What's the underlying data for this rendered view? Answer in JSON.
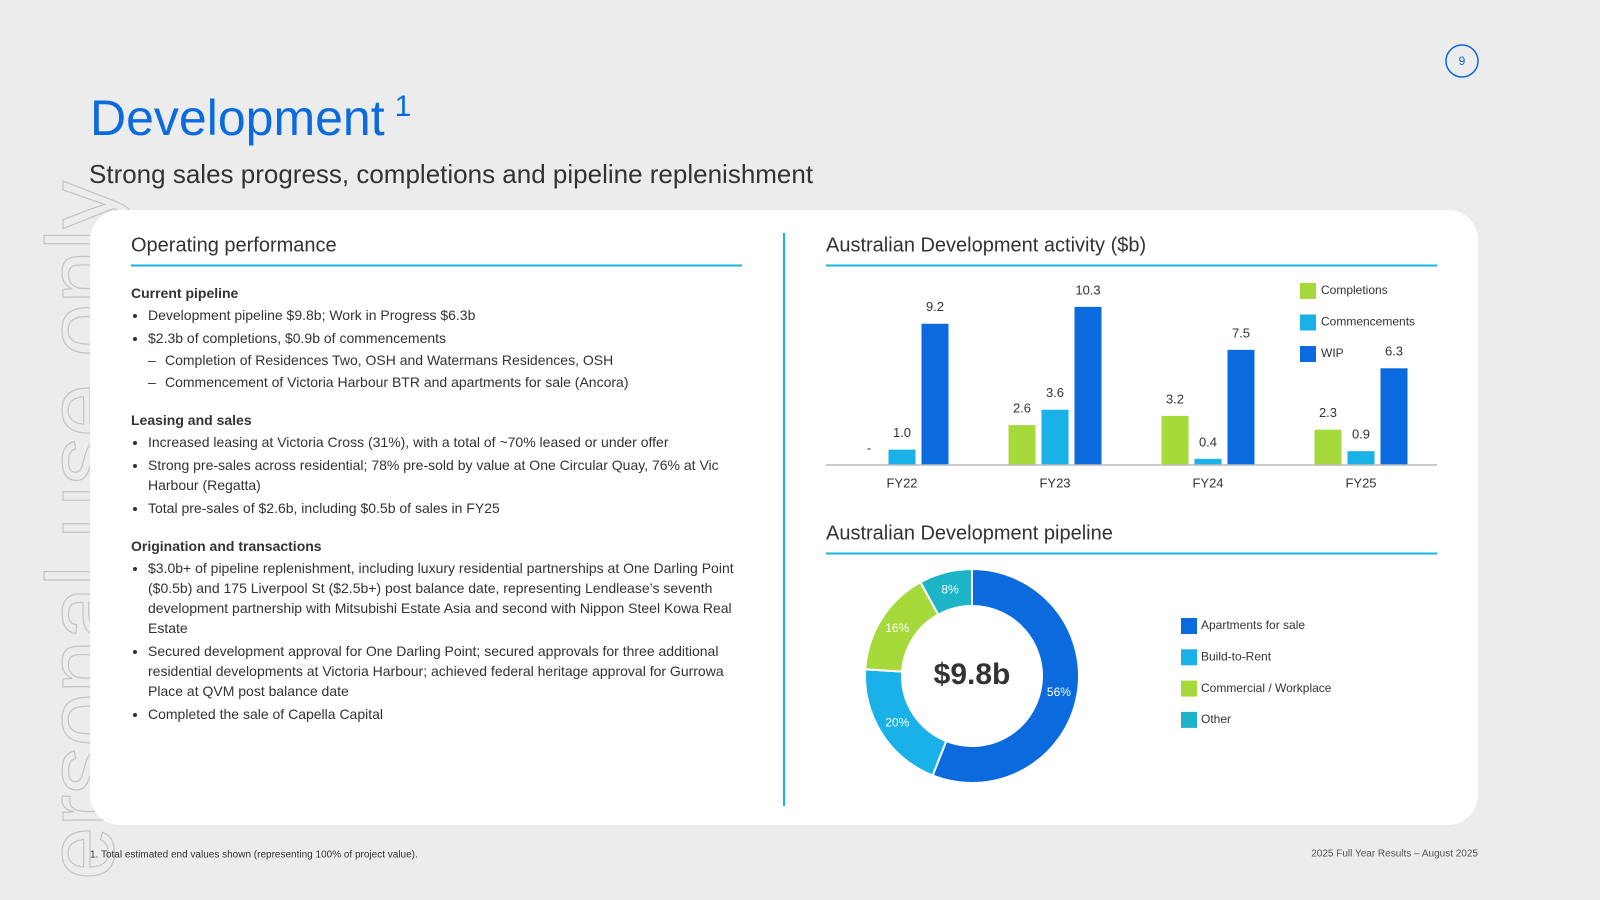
{
  "page_number": "9",
  "title": "Development",
  "title_note": "1",
  "subtitle": "Strong sales progress, completions and pipeline replenishment",
  "watermark": "ersonal use only",
  "left_panel": {
    "heading": "Operating performance",
    "sections": [
      {
        "heading": "Current pipeline",
        "items": [
          {
            "text": "Development pipeline $9.8b; Work in Progress $6.3b"
          },
          {
            "text": "$2.3b of completions, $0.9b of commencements",
            "sub": [
              "Completion of Residences Two, OSH and Watermans Residences, OSH",
              "Commencement of Victoria Harbour BTR and apartments for sale (Ancora)"
            ]
          }
        ]
      },
      {
        "heading": "Leasing and sales",
        "items": [
          {
            "text": "Increased leasing at Victoria Cross (31%), with a total of ~70% leased or under offer"
          },
          {
            "text": "Strong pre-sales across residential; 78% pre-sold by value at One Circular Quay, 76% at Vic Harbour (Regatta)"
          },
          {
            "text": "Total pre-sales of $2.6b, including $0.5b of sales in FY25"
          }
        ]
      },
      {
        "heading": "Origination and transactions",
        "items": [
          {
            "text": "$3.0b+ of pipeline replenishment, including luxury residential partnerships at One Darling Point ($0.5b) and 175 Liverpool St ($2.5b+) post balance date, representing Lendlease’s seventh development partnership with Mitsubishi Estate Asia and second with Nippon Steel Kowa Real Estate"
          },
          {
            "text": "Secured development approval for One Darling Point; secured approvals for three additional residential developments at Victoria Harbour; achieved federal heritage approval for Gurrowa Place at QVM post balance date"
          },
          {
            "text": "Completed the sale of Capella Capital"
          }
        ]
      }
    ]
  },
  "chart_data": [
    {
      "type": "bar",
      "title": "Australian Development activity ($b)",
      "categories": [
        "FY22",
        "FY23",
        "FY24",
        "FY25"
      ],
      "ylim": [
        0,
        11.4
      ],
      "series": [
        {
          "name": "Completions",
          "color": "#a6d93a",
          "values": [
            0,
            2.6,
            3.2,
            2.3
          ],
          "value_labels": [
            "-",
            "2.6",
            "3.2",
            "2.3"
          ]
        },
        {
          "name": "Commencements",
          "color": "#1ab0e8",
          "values": [
            1.0,
            3.6,
            0.4,
            0.9
          ],
          "value_labels": [
            "1.0",
            "3.6",
            "0.4",
            "0.9"
          ]
        },
        {
          "name": "WIP",
          "color": "#0b6bde",
          "values": [
            9.2,
            10.3,
            7.5,
            6.3
          ],
          "value_labels": [
            "9.2",
            "10.3",
            "7.5",
            "6.3"
          ]
        }
      ]
    },
    {
      "type": "donut",
      "title": "Australian Development pipeline",
      "center_label": "$9.8b",
      "categories": [
        "Apartments for sale",
        "Build-to-Rent",
        "Commercial / Workplace",
        "Other"
      ],
      "values": [
        56,
        20,
        16,
        8
      ],
      "value_labels": [
        "56%",
        "20%",
        "16%",
        "8%"
      ],
      "colors": [
        "#0b6bde",
        "#1ab0e8",
        "#a6d93a",
        "#1db4c8"
      ]
    }
  ],
  "footnote": "1. Total estimated end values shown (representing 100% of project value).",
  "footer": "2025 Full Year Results – August 2025"
}
